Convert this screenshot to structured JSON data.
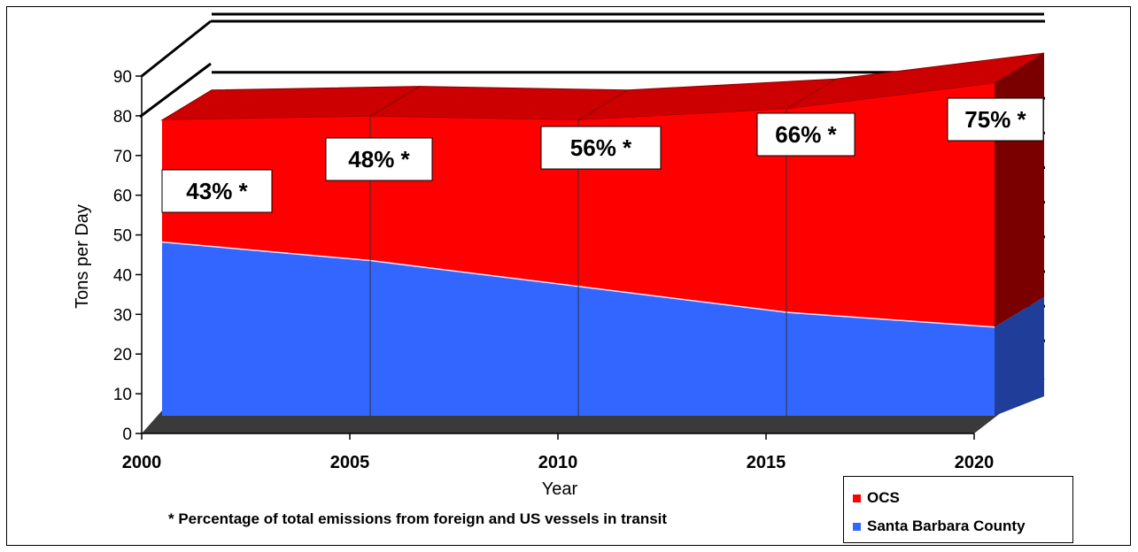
{
  "chart_data": {
    "type": "area",
    "stacked": true,
    "three_d": true,
    "x": [
      2000,
      2005,
      2010,
      2015,
      2020
    ],
    "series": [
      {
        "name": "Santa Barbara County",
        "values": [
          47,
          42,
          35,
          28,
          24
        ],
        "color": "#3366ff"
      },
      {
        "name": "OCS",
        "values": [
          33,
          39,
          45,
          55,
          66
        ],
        "color": "#ff0000"
      }
    ],
    "annotations": [
      "43% *",
      "48% *",
      "56% *",
      "66% *",
      "75% *"
    ],
    "xlabel": "Year",
    "ylabel": "Tons per Day",
    "ylim": [
      0,
      90
    ],
    "yticks": [
      0,
      10,
      20,
      30,
      40,
      50,
      60,
      70,
      80,
      90
    ],
    "footnote": "* Percentage of total emissions from foreign and US vessels in transit",
    "legend": {
      "placement": "bottom-right",
      "entries": [
        "OCS",
        "Santa Barbara County"
      ]
    }
  }
}
